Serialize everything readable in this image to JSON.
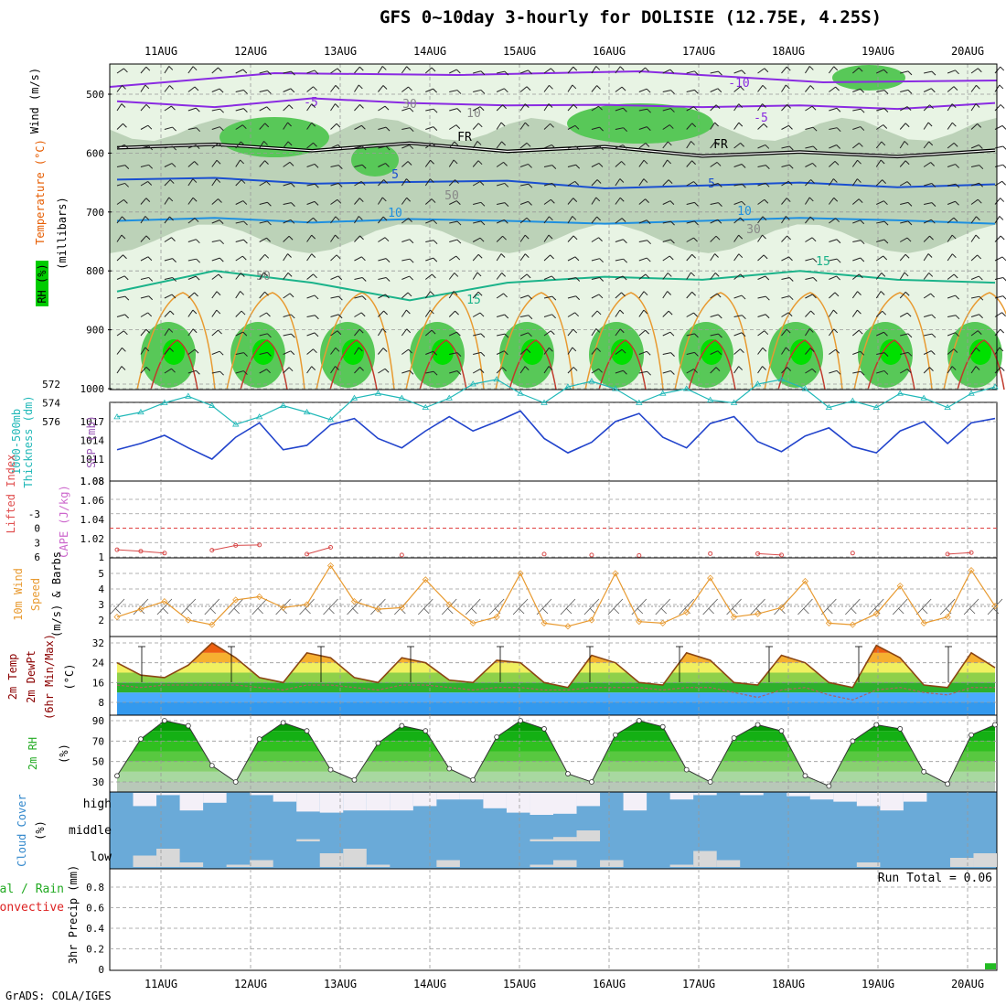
{
  "title": "GFS 0~10day 3-hourly for DOLISIE (12.75E, 4.25S)",
  "credit": "GrADS: COLA/IGES",
  "colors": {
    "frame": "#000000",
    "grid": "#999999",
    "rh_light": "#e8f4e4",
    "rh_mid": "#b4cbb0",
    "rh_high": "#58c858",
    "rh_peak": "#00e000",
    "slp": "#2244cc",
    "thickness": "#20b8b8",
    "lifted": "#d84a4a",
    "wind": "#e89a30",
    "temp_line": "#8b4513",
    "dewpt_line": "#b06060",
    "rh_fill": "#22aa22",
    "cloud_bg": "#6aaad8",
    "cloud_fill": "#f4f0f8",
    "precip": "#22bb22"
  },
  "chart_data": [
    {
      "panel": "upper-air",
      "type": "contour",
      "x_ticks": [
        "11AUG",
        "12AUG",
        "13AUG",
        "14AUG",
        "15AUG",
        "16AUG",
        "17AUG",
        "18AUG",
        "19AUG",
        "20AUG"
      ],
      "y_ticks": [
        "500",
        "600",
        "700",
        "800",
        "900",
        "1000"
      ],
      "ylabel": "(millibars)",
      "legend_labels": [
        "RH (%)",
        "Temperature (°C)",
        "Wind (m/s)"
      ],
      "contour_labels": [
        "-10",
        "-5",
        "-5",
        "FR",
        "FR",
        "5",
        "5",
        "10",
        "10",
        "15",
        "15",
        "30",
        "30",
        "50",
        "50",
        "10"
      ],
      "freezing_level_mb": [
        591,
        585,
        596,
        583,
        597,
        589,
        605,
        598,
        606,
        595
      ],
      "isotherm_minus5_mb": [
        512,
        522,
        507,
        515,
        519,
        518,
        522,
        519,
        525,
        515
      ],
      "isotherm_5_mb": [
        645,
        642,
        652,
        649,
        647,
        660,
        655,
        650,
        658,
        653
      ],
      "isotherm_10_mb": [
        715,
        710,
        718,
        712,
        715,
        720,
        715,
        710,
        714,
        720
      ],
      "isotherm_15_mb": [
        835,
        800,
        820,
        850,
        820,
        810,
        815,
        800,
        815,
        820
      ]
    },
    {
      "panel": "thickness-slp",
      "type": "line",
      "x": [
        "11AUG 00",
        "11AUG 06",
        "11AUG 12",
        "11AUG 18",
        "12AUG 00",
        "12AUG 06",
        "12AUG 12",
        "12AUG 18",
        "13AUG 00",
        "13AUG 06",
        "13AUG 12",
        "13AUG 18",
        "14AUG 00",
        "14AUG 06",
        "14AUG 12",
        "14AUG 18",
        "15AUG 00",
        "15AUG 06",
        "15AUG 12",
        "15AUG 18",
        "16AUG 00",
        "16AUG 06",
        "16AUG 12",
        "16AUG 18",
        "17AUG 00",
        "17AUG 06",
        "17AUG 12",
        "17AUG 18",
        "18AUG 00",
        "18AUG 06",
        "18AUG 12",
        "18AUG 18",
        "19AUG 00",
        "19AUG 06",
        "19AUG 12",
        "19AUG 18",
        "20AUG 00",
        "20AUG 06"
      ],
      "left_ylabel": "1000-500mb Thickness (dm)",
      "right_ylabel": "SLP (mb)",
      "left_ticks": [
        "576",
        "574",
        "572"
      ],
      "right_ticks": [
        "1017",
        "1014",
        "1011"
      ],
      "series": [
        {
          "name": "SLP (mb)",
          "values": [
            1012.5,
            1013.5,
            1014.8,
            1012.8,
            1011.0,
            1014.5,
            1016.8,
            1012.5,
            1013.2,
            1016.5,
            1017.5,
            1014.3,
            1012.8,
            1015.5,
            1017.8,
            1015.5,
            1017.0,
            1018.7,
            1014.3,
            1012.0,
            1013.7,
            1017.0,
            1018.3,
            1014.5,
            1012.8,
            1016.7,
            1017.8,
            1013.8,
            1012.2,
            1014.7,
            1016.0,
            1013.0,
            1012.0,
            1015.5,
            1017.0,
            1013.5,
            1016.8,
            1017.5
          ]
        },
        {
          "name": "1000-500mb Thickness (dm)",
          "values": [
            575.5,
            575.0,
            574.0,
            573.3,
            574.3,
            576.3,
            575.5,
            574.3,
            575.0,
            575.8,
            573.5,
            573.0,
            573.5,
            574.5,
            573.5,
            572.0,
            571.5,
            573.0,
            574.0,
            572.3,
            571.7,
            572.5,
            574.0,
            573.0,
            572.5,
            573.7,
            574.0,
            572.0,
            571.5,
            572.5,
            574.5,
            573.8,
            574.5,
            573.0,
            573.5,
            574.5,
            573.0,
            572.3
          ]
        }
      ]
    },
    {
      "panel": "instability",
      "type": "line",
      "left_ylabel": "Lifted Index",
      "right_ylabel": "CAPE (J/kg)",
      "left_ticks": [
        "-6",
        "-3",
        "0",
        "3",
        "6"
      ],
      "right_ticks": [
        "1.08",
        "1.06",
        "1.04",
        "1.02",
        "1"
      ],
      "series": [
        {
          "name": "Lifted Index",
          "values": [
            4.5,
            4.8,
            5.2,
            null,
            4.6,
            3.6,
            3.5,
            null,
            5.4,
            4.0,
            null,
            null,
            5.6,
            null,
            null,
            null,
            null,
            null,
            5.4,
            null,
            5.6,
            null,
            5.7,
            null,
            null,
            5.3,
            null,
            5.3,
            5.6,
            null,
            null,
            5.2,
            null,
            null,
            null,
            5.4,
            5.1,
            null
          ]
        }
      ]
    },
    {
      "panel": "10m-wind",
      "type": "line",
      "ylabel": "10m Wind Speed (m/s) & Barbs",
      "y_ticks": [
        "2",
        "3",
        "4",
        "5"
      ],
      "ylim": [
        1.3,
        6
      ],
      "series": [
        {
          "name": "10m Wind Speed",
          "values": [
            2.2,
            2.7,
            3.2,
            2.0,
            1.7,
            3.3,
            3.5,
            2.8,
            3.0,
            5.5,
            3.2,
            2.7,
            2.8,
            4.6,
            3.0,
            1.8,
            2.2,
            5.0,
            1.8,
            1.6,
            2.0,
            5.0,
            1.9,
            1.8,
            2.5,
            4.7,
            2.2,
            2.4,
            2.8,
            4.5,
            1.8,
            1.7,
            2.4,
            4.2,
            1.8,
            2.2,
            5.2,
            2.9
          ]
        }
      ]
    },
    {
      "panel": "2m-temp",
      "type": "area",
      "ylabel": "2m Temp 2m DewPt (6hr Min/Max) (°C)",
      "y_ticks": [
        "8",
        "16",
        "24",
        "32"
      ],
      "ylim": [
        3,
        35
      ],
      "series": [
        {
          "name": "2m Temp",
          "values": [
            24,
            19,
            18,
            23,
            32,
            26,
            18,
            16,
            28,
            26,
            18,
            16,
            26,
            24,
            17,
            16,
            25,
            24,
            16,
            14,
            27,
            24,
            16,
            15,
            28,
            25,
            16,
            15,
            27,
            24,
            16,
            14,
            31,
            26,
            15,
            14,
            28,
            22
          ]
        },
        {
          "name": "2m DewPt",
          "values": [
            15,
            14,
            15,
            15,
            15,
            15,
            14,
            13,
            15,
            15,
            14,
            13,
            15,
            15,
            14,
            13,
            14,
            14,
            13,
            13,
            14,
            14,
            14,
            13,
            14,
            14,
            12,
            10,
            13,
            14,
            11,
            9,
            13,
            14,
            12,
            11,
            14,
            14
          ]
        }
      ]
    },
    {
      "panel": "2m-rh",
      "type": "area",
      "ylabel": "2m RH (%)",
      "y_ticks": [
        "30",
        "50",
        "70",
        "90"
      ],
      "ylim": [
        22,
        95
      ],
      "series": [
        {
          "name": "2m RH",
          "values": [
            36,
            72,
            90,
            85,
            46,
            30,
            72,
            88,
            80,
            42,
            32,
            68,
            85,
            80,
            43,
            32,
            74,
            90,
            82,
            38,
            30,
            76,
            90,
            84,
            42,
            30,
            73,
            86,
            80,
            36,
            26,
            70,
            86,
            82,
            40,
            28,
            76,
            86
          ]
        }
      ]
    },
    {
      "panel": "cloud-cover",
      "type": "bar",
      "ylabel": "Cloud Cover (%)",
      "y_ticks": [
        "high",
        "middle",
        "low"
      ],
      "series": [
        {
          "name": "high",
          "values": [
            5,
            60,
            10,
            80,
            45,
            5,
            10,
            40,
            85,
            90,
            80,
            80,
            80,
            60,
            30,
            30,
            70,
            90,
            100,
            95,
            60,
            5,
            80,
            5,
            30,
            10,
            5,
            10,
            5,
            15,
            30,
            40,
            60,
            80,
            40,
            5,
            5,
            5
          ]
        },
        {
          "name": "middle",
          "values": [
            5,
            5,
            5,
            5,
            5,
            5,
            5,
            5,
            10,
            5,
            5,
            5,
            5,
            5,
            5,
            5,
            5,
            5,
            10,
            20,
            50,
            5,
            5,
            5,
            5,
            5,
            5,
            5,
            5,
            5,
            5,
            5,
            5,
            5,
            5,
            5,
            5,
            5
          ]
        },
        {
          "name": "low",
          "values": [
            5,
            50,
            80,
            20,
            5,
            10,
            30,
            5,
            5,
            60,
            80,
            10,
            5,
            5,
            30,
            5,
            5,
            5,
            10,
            30,
            5,
            30,
            5,
            5,
            10,
            70,
            30,
            5,
            5,
            5,
            5,
            5,
            20,
            5,
            5,
            5,
            40,
            60
          ]
        }
      ]
    },
    {
      "panel": "precip",
      "type": "bar",
      "ylabel": "3hr Precip (mm)",
      "left_label_lines": [
        "Total / Rain",
        "Convective"
      ],
      "y_ticks": [
        "0",
        "0.2",
        "0.4",
        "0.6",
        "0.8"
      ],
      "ylim": [
        0,
        0.95
      ],
      "annotation": "Run Total = 0.06",
      "series": [
        {
          "name": "Total / Rain",
          "values": [
            0,
            0,
            0,
            0,
            0,
            0,
            0,
            0,
            0,
            0,
            0,
            0,
            0,
            0,
            0,
            0,
            0,
            0,
            0,
            0,
            0,
            0,
            0,
            0,
            0,
            0,
            0,
            0,
            0,
            0,
            0,
            0,
            0,
            0,
            0,
            0,
            0,
            0.06
          ]
        }
      ]
    }
  ]
}
